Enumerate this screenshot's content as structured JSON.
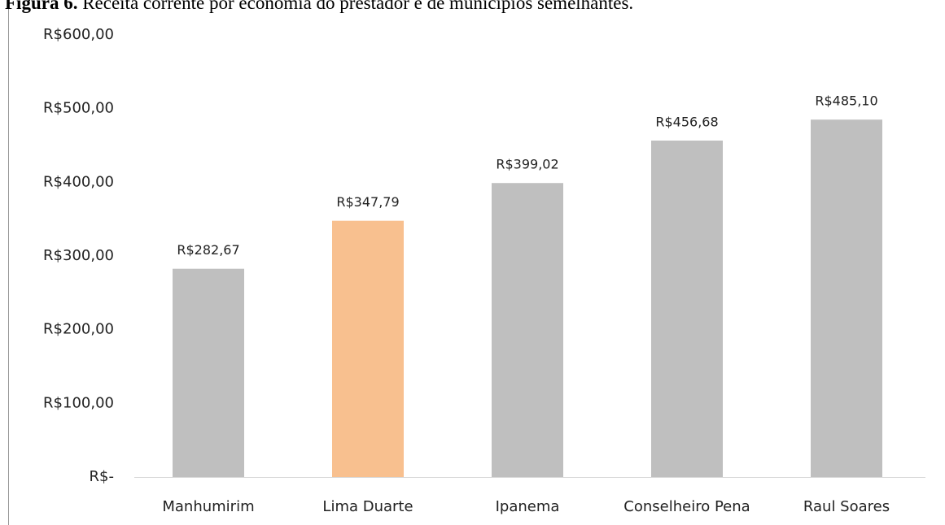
{
  "chart_data": {
    "type": "bar",
    "title_label": "Figura 6.",
    "title": "Receita corrente por economia do prestador e de municípios semelhantes.",
    "categories": [
      "Manhumirim",
      "Lima Duarte",
      "Ipanema",
      "Conselheiro Pena",
      "Raul Soares"
    ],
    "values": [
      282.67,
      347.79,
      399.02,
      456.68,
      485.1
    ],
    "value_labels": [
      "R$282,67",
      "R$347,79",
      "R$399,02",
      "R$456,68",
      "R$485,10"
    ],
    "colors": [
      "#bfbfbf",
      "#f8c08f",
      "#bfbfbf",
      "#bfbfbf",
      "#bfbfbf"
    ],
    "ylim": [
      0,
      600
    ],
    "yticks": [
      {
        "value": 0,
        "label": "R$-"
      },
      {
        "value": 100,
        "label": "R$100,00"
      },
      {
        "value": 200,
        "label": "R$200,00"
      },
      {
        "value": 300,
        "label": "R$300,00"
      },
      {
        "value": 400,
        "label": "R$400,00"
      },
      {
        "value": 500,
        "label": "R$500,00"
      },
      {
        "value": 600,
        "label": "R$600,00"
      }
    ],
    "grid": false
  }
}
